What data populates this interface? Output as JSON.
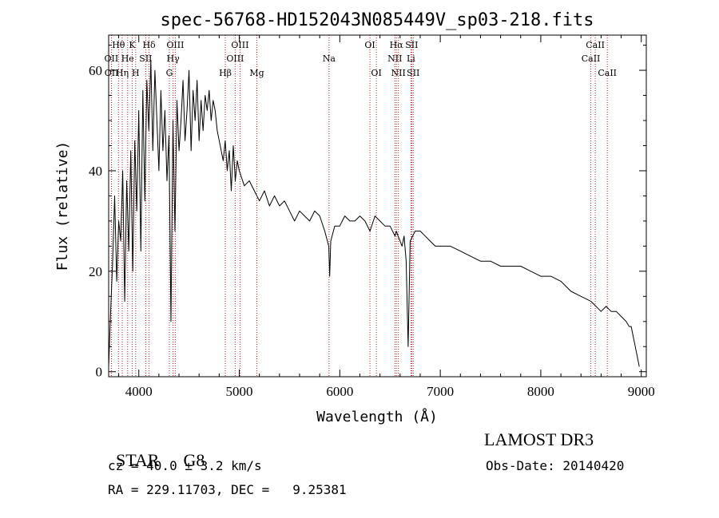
{
  "chart_data": {
    "type": "line",
    "title": "spec-56768-HD152043N085449V_sp03-218.fits",
    "xlabel": "Wavelength (Å)",
    "ylabel": "Flux (relative)",
    "xlim": [
      3700,
      9050
    ],
    "ylim": [
      -1,
      67
    ],
    "xticks": [
      4000,
      5000,
      6000,
      7000,
      8000,
      9000
    ],
    "yticks": [
      0,
      20,
      40,
      60
    ],
    "series": [
      {
        "name": "flux",
        "x": [
          3700,
          3720,
          3740,
          3760,
          3780,
          3800,
          3820,
          3840,
          3860,
          3880,
          3900,
          3920,
          3940,
          3960,
          3980,
          4000,
          4020,
          4040,
          4060,
          4080,
          4100,
          4120,
          4140,
          4160,
          4180,
          4200,
          4220,
          4240,
          4260,
          4280,
          4300,
          4320,
          4340,
          4360,
          4380,
          4400,
          4420,
          4440,
          4460,
          4480,
          4500,
          4520,
          4540,
          4560,
          4580,
          4600,
          4620,
          4640,
          4660,
          4680,
          4700,
          4720,
          4740,
          4760,
          4780,
          4800,
          4820,
          4840,
          4860,
          4880,
          4900,
          4920,
          4940,
          4960,
          4980,
          5000,
          5050,
          5100,
          5150,
          5200,
          5250,
          5300,
          5350,
          5400,
          5450,
          5500,
          5550,
          5600,
          5650,
          5700,
          5750,
          5800,
          5850,
          5890,
          5900,
          5910,
          5950,
          6000,
          6050,
          6100,
          6150,
          6200,
          6250,
          6300,
          6350,
          6400,
          6450,
          6500,
          6550,
          6563,
          6580,
          6600,
          6620,
          6640,
          6660,
          6680,
          6700,
          6750,
          6800,
          6850,
          6900,
          6950,
          7000,
          7100,
          7200,
          7300,
          7400,
          7500,
          7600,
          7700,
          7800,
          7900,
          8000,
          8100,
          8200,
          8300,
          8400,
          8500,
          8600,
          8650,
          8700,
          8750,
          8800,
          8850,
          8880,
          8900,
          8920,
          8940,
          8960,
          8980
        ],
        "values": [
          1,
          12,
          22,
          35,
          18,
          30,
          26,
          40,
          14,
          38,
          24,
          44,
          20,
          46,
          32,
          52,
          24,
          56,
          34,
          58,
          48,
          62,
          44,
          60,
          50,
          40,
          56,
          44,
          52,
          38,
          47,
          10,
          50,
          28,
          54,
          44,
          50,
          58,
          46,
          52,
          60,
          44,
          56,
          50,
          58,
          46,
          54,
          48,
          55,
          52,
          56,
          50,
          54,
          52,
          48,
          46,
          44,
          42,
          46,
          40,
          44,
          36,
          45,
          38,
          42,
          40,
          37,
          38,
          36,
          34,
          36,
          33,
          35,
          33,
          34,
          32,
          30,
          32,
          31,
          30,
          32,
          31,
          28,
          25,
          19,
          26,
          29,
          29,
          31,
          30,
          30,
          31,
          30,
          28,
          31,
          30,
          29,
          29,
          27,
          28,
          27,
          26,
          25,
          27,
          22,
          5,
          26,
          28,
          28,
          27,
          26,
          25,
          25,
          25,
          24,
          23,
          22,
          22,
          21,
          21,
          21,
          20,
          19,
          19,
          18,
          16,
          15,
          14,
          12,
          13,
          12,
          12,
          11,
          10,
          9,
          9,
          7,
          5,
          3,
          1
        ]
      }
    ],
    "lines": [
      {
        "label": "Hθ",
        "wl": 3798,
        "row": 1
      },
      {
        "label": "OII",
        "wl": 3727,
        "row": 2
      },
      {
        "label": "OII",
        "wl": 3729,
        "row": 3
      },
      {
        "label": "He",
        "wl": 3889,
        "row": 2
      },
      {
        "label": "Hη",
        "wl": 3835,
        "row": 3
      },
      {
        "label": "K",
        "wl": 3934,
        "row": 1
      },
      {
        "label": "H",
        "wl": 3969,
        "row": 3
      },
      {
        "label": "SII",
        "wl": 4069,
        "row": 2
      },
      {
        "label": "Hδ",
        "wl": 4102,
        "row": 1
      },
      {
        "label": "OIII",
        "wl": 4363,
        "row": 1
      },
      {
        "label": "Hγ",
        "wl": 4341,
        "row": 2
      },
      {
        "label": "G",
        "wl": 4304,
        "row": 3
      },
      {
        "label": "Hβ",
        "wl": 4861,
        "row": 3
      },
      {
        "label": "OIII",
        "wl": 5007,
        "row": 1
      },
      {
        "label": "OIII",
        "wl": 4959,
        "row": 2
      },
      {
        "label": "Mg",
        "wl": 5175,
        "row": 3
      },
      {
        "label": "Na",
        "wl": 5893,
        "row": 2
      },
      {
        "label": "OI",
        "wl": 6300,
        "row": 1
      },
      {
        "label": "OI",
        "wl": 6364,
        "row": 3
      },
      {
        "label": "Hα",
        "wl": 6563,
        "row": 1
      },
      {
        "label": "NII",
        "wl": 6548,
        "row": 2
      },
      {
        "label": "NII",
        "wl": 6583,
        "row": 3
      },
      {
        "label": "SII",
        "wl": 6716,
        "row": 1
      },
      {
        "label": "Li",
        "wl": 6708,
        "row": 2
      },
      {
        "label": "SII",
        "wl": 6731,
        "row": 3
      },
      {
        "label": "CaII",
        "wl": 8542,
        "row": 1
      },
      {
        "label": "CaII",
        "wl": 8498,
        "row": 2
      },
      {
        "label": "CaII",
        "wl": 8662,
        "row": 3
      }
    ]
  },
  "info": {
    "class_label": "STAR",
    "subclass": "G8",
    "survey": "LAMOST DR3",
    "cz": "cz = 40.0 ± 3.2 km/s",
    "obs_date": "Obs-Date: 20140420",
    "coords": "RA = 229.11703, DEC =   9.25381"
  },
  "colors": {
    "axes": "#000000",
    "spectrum": "#000000",
    "line_marker": "#b22222"
  }
}
